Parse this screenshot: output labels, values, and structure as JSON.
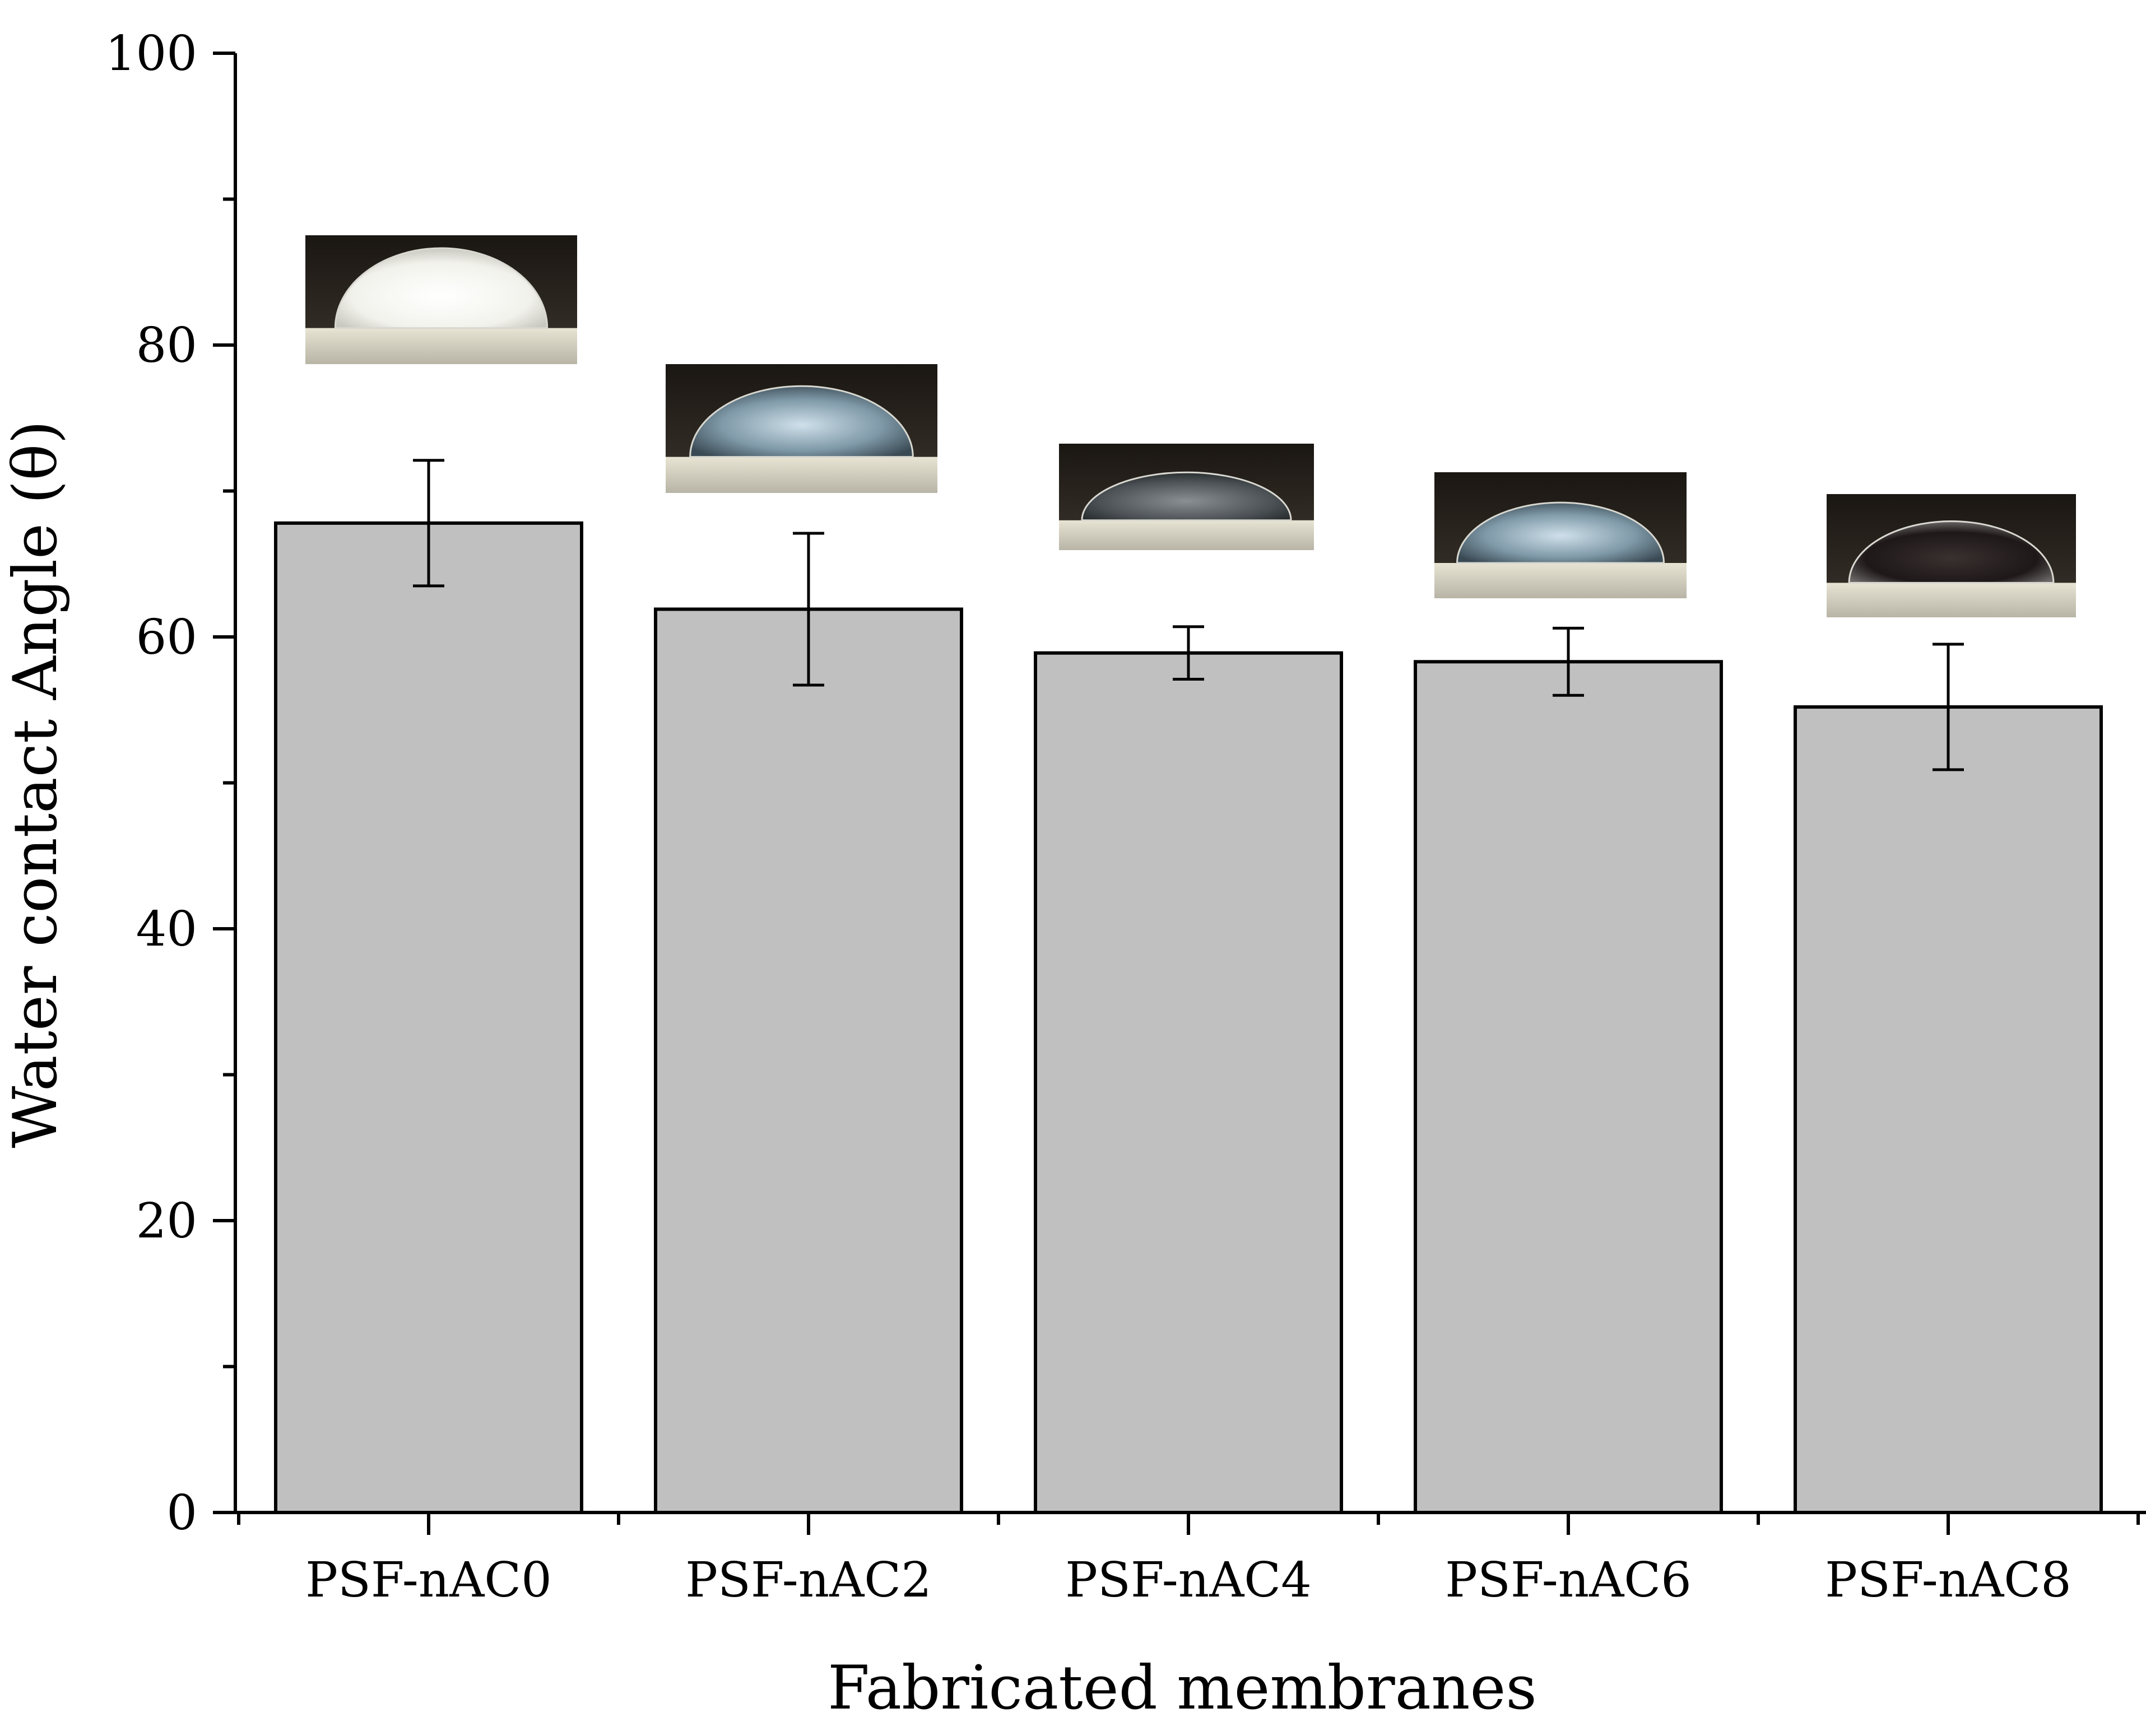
{
  "chart_data": {
    "type": "bar",
    "title": "",
    "xlabel": "Fabricated membranes",
    "ylabel": "Water contact Angle (θ)",
    "categories": [
      "PSF-nAC0",
      "PSF-nAC2",
      "PSF-nAC4",
      "PSF-nAC6",
      "PSF-nAC8"
    ],
    "values": [
      67.8,
      61.9,
      58.9,
      58.3,
      55.2
    ],
    "error": [
      4.3,
      5.2,
      1.8,
      2.3,
      4.3
    ],
    "ylim": [
      0,
      100
    ],
    "yticks": [
      0,
      20,
      40,
      60,
      80,
      100
    ],
    "grid": false,
    "colors": {
      "bar": "#c0c0c0",
      "edge": "#000000"
    },
    "insets": [
      {
        "category": "PSF-nAC0",
        "content": "water-droplet-photo"
      },
      {
        "category": "PSF-nAC2",
        "content": "water-droplet-photo"
      },
      {
        "category": "PSF-nAC4",
        "content": "water-droplet-photo"
      },
      {
        "category": "PSF-nAC6",
        "content": "water-droplet-photo"
      },
      {
        "category": "PSF-nAC8",
        "content": "water-droplet-photo"
      }
    ]
  }
}
